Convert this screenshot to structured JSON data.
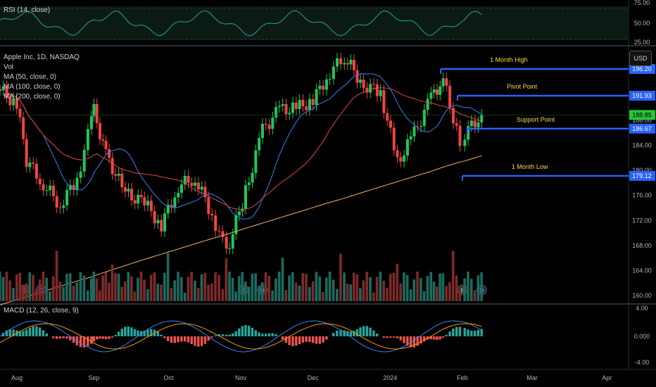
{
  "rsi": {
    "label": "RSI (14, close)",
    "ticks": [
      "75.00",
      "50.00",
      "25.00"
    ],
    "upper": 70,
    "lower": 30
  },
  "main": {
    "legend": {
      "title": "Apple Inc, 1D, NASDAQ",
      "vol": "Vol",
      "ma50": "MA (50, close, 0)",
      "ma100": "MA (100, close, 0)",
      "ma200": "MA (200, close, 0)"
    },
    "currency_button": "USD",
    "price_ticks": [
      "188.00",
      "184.00",
      "180.00",
      "176.00",
      "172.00",
      "168.00",
      "164.00",
      "160.00"
    ],
    "level_tags": [
      {
        "label": "196.20",
        "value": 196.2,
        "color": "#2962ff"
      },
      {
        "label": "191.93",
        "value": 191.93,
        "color": "#2962ff"
      },
      {
        "label": "188.85",
        "value": 188.85,
        "color": "#26c63b"
      },
      {
        "label": "186.67",
        "value": 186.67,
        "color": "#2962ff"
      },
      {
        "label": "179.12",
        "value": 179.12,
        "color": "#2962ff"
      }
    ],
    "annotations": [
      {
        "text": "1 Month High",
        "level": 196.2
      },
      {
        "text": "Pivot Point",
        "level": 191.93
      },
      {
        "text": "Support Point",
        "level": 186.67
      },
      {
        "text": "1 Month Low",
        "level": 179.12
      }
    ],
    "event_markers": [
      "E",
      "D",
      "E",
      "D",
      "E",
      "D"
    ]
  },
  "macd": {
    "label": "MACD (12, 26, close, 9)",
    "ticks": [
      "4.00",
      "0.000",
      "-4.00"
    ]
  },
  "time_axis": [
    "Aug",
    "Sep",
    "Oct",
    "Nov",
    "Dec",
    "2024",
    "Feb",
    "Mar",
    "Apr"
  ],
  "colors": {
    "up": "#22c55e",
    "down": "#ef4444",
    "ma50": "#3b82f6",
    "ma100": "#e14747",
    "ma200": "#f4b26a",
    "level": "#2962ff",
    "annotation": "#ffd54a",
    "rsi": "#26a69a",
    "macd": "#3b82f6",
    "signal": "#ff9800"
  },
  "chart_data": {
    "type": "candlestick",
    "symbol": "Apple Inc, 1D, NASDAQ",
    "ylim": [
      159,
      198
    ],
    "levels": [
      {
        "name": "1 Month High",
        "value": 196.2
      },
      {
        "name": "Pivot Point",
        "value": 191.93
      },
      {
        "name": "Support Point",
        "value": 186.67
      },
      {
        "name": "1 Month Low",
        "value": 179.12
      }
    ],
    "last_price": 188.85,
    "close_series": [
      {
        "date": "2023-07-24",
        "close": 192.8
      },
      {
        "date": "2023-07-31",
        "close": 190.5
      },
      {
        "date": "2023-08-04",
        "close": 181.6
      },
      {
        "date": "2023-08-11",
        "close": 177.8
      },
      {
        "date": "2023-08-18",
        "close": 174.5
      },
      {
        "date": "2023-08-25",
        "close": 178.6
      },
      {
        "date": "2023-08-31",
        "close": 187.8
      },
      {
        "date": "2023-09-01",
        "close": 189.5
      },
      {
        "date": "2023-09-06",
        "close": 182.5
      },
      {
        "date": "2023-09-14",
        "close": 176.3
      },
      {
        "date": "2023-09-22",
        "close": 174.8
      },
      {
        "date": "2023-09-29",
        "close": 171.2
      },
      {
        "date": "2023-10-06",
        "close": 177.5
      },
      {
        "date": "2023-10-13",
        "close": 178.8
      },
      {
        "date": "2023-10-20",
        "close": 172.9
      },
      {
        "date": "2023-10-26",
        "close": 166.9
      },
      {
        "date": "2023-11-03",
        "close": 176.6
      },
      {
        "date": "2023-11-10",
        "close": 186.4
      },
      {
        "date": "2023-11-17",
        "close": 189.7
      },
      {
        "date": "2023-11-24",
        "close": 189.9
      },
      {
        "date": "2023-12-01",
        "close": 191.2
      },
      {
        "date": "2023-12-08",
        "close": 195.7
      },
      {
        "date": "2023-12-14",
        "close": 198.1
      },
      {
        "date": "2023-12-22",
        "close": 193.6
      },
      {
        "date": "2023-12-29",
        "close": 192.5
      },
      {
        "date": "2024-01-05",
        "close": 181.2
      },
      {
        "date": "2024-01-12",
        "close": 185.9
      },
      {
        "date": "2024-01-19",
        "close": 191.6
      },
      {
        "date": "2024-01-24",
        "close": 194.5
      },
      {
        "date": "2024-01-31",
        "close": 184.4
      },
      {
        "date": "2024-02-02",
        "close": 185.9
      },
      {
        "date": "2024-02-09",
        "close": 188.9
      }
    ]
  }
}
